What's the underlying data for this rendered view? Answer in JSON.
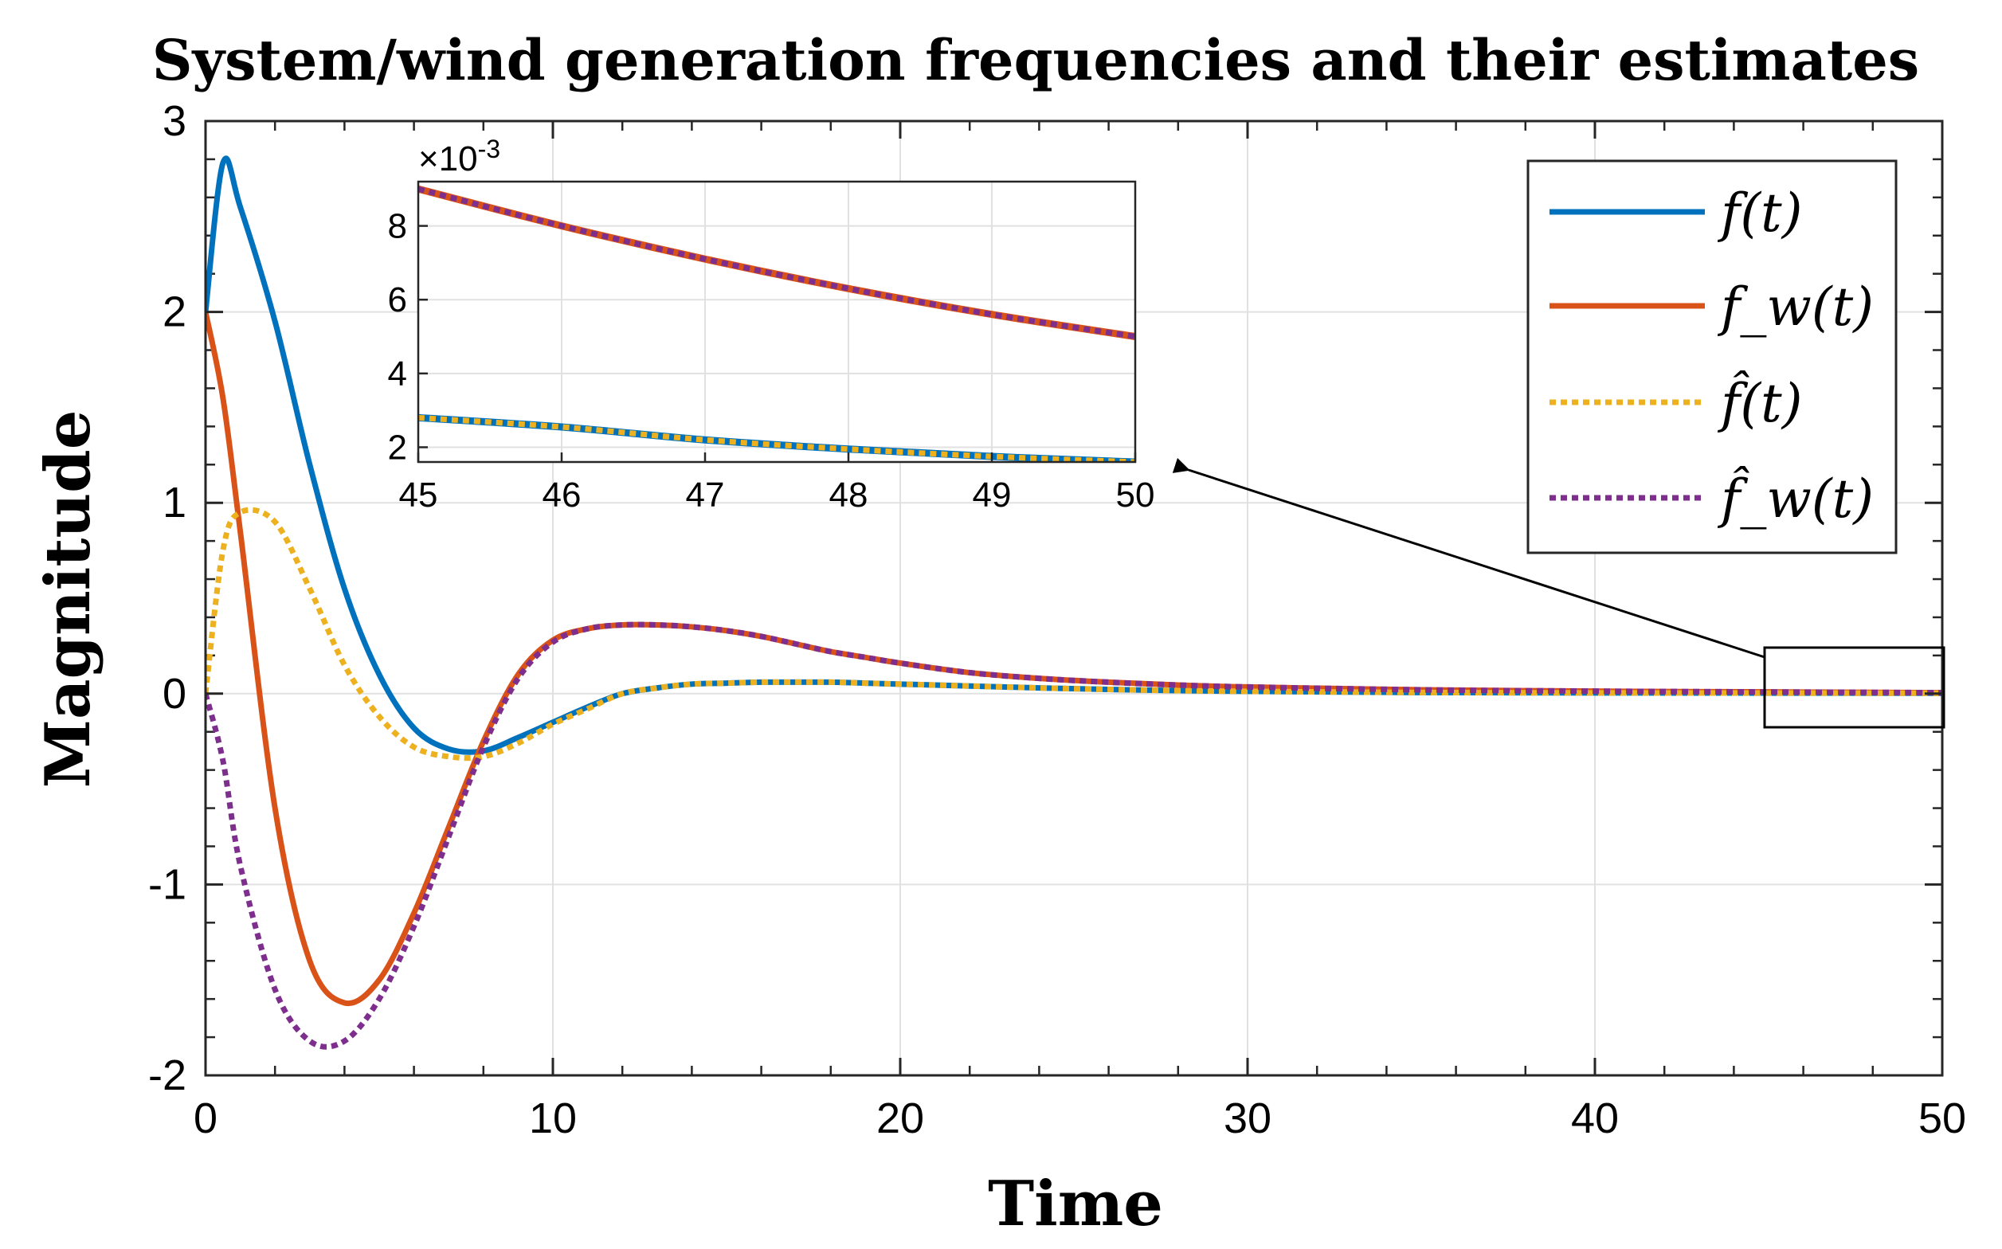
{
  "chart_data": {
    "type": "line",
    "title": "System/wind generation frequencies and their estimates",
    "xlabel": "Time",
    "ylabel": "Magnitude",
    "xlim": [
      0,
      50
    ],
    "ylim": [
      -2,
      3
    ],
    "xticks": [
      "0",
      "10",
      "20",
      "30",
      "40",
      "50"
    ],
    "yticks": [
      "-2",
      "-1",
      "0",
      "1",
      "2",
      "3"
    ],
    "grid": true,
    "legend": {
      "position": "top-right",
      "entries": [
        {
          "label": "f(t)",
          "color": "#0072BD",
          "style": "solid"
        },
        {
          "label": "f_w(t)",
          "color": "#D95319",
          "style": "solid"
        },
        {
          "label": "f̂(t)",
          "color": "#EDB120",
          "style": "dotted"
        },
        {
          "label": "f̂_w(t)",
          "color": "#7E2F8E",
          "style": "dotted"
        }
      ]
    },
    "x": [
      0,
      0.5,
      1,
      2,
      3,
      4,
      5,
      6,
      7,
      8,
      9,
      10,
      11,
      12,
      13,
      14,
      15,
      16,
      17,
      18,
      19,
      20,
      22,
      24,
      26,
      28,
      30,
      35,
      40,
      45,
      50
    ],
    "series": [
      {
        "name": "f(t)",
        "color": "#0072BD",
        "values": [
          2.0,
          2.78,
          2.55,
          1.95,
          1.2,
          0.55,
          0.1,
          -0.18,
          -0.29,
          -0.3,
          -0.23,
          -0.15,
          -0.07,
          0.0,
          0.03,
          0.05,
          0.055,
          0.06,
          0.06,
          0.06,
          0.055,
          0.05,
          0.04,
          0.03,
          0.022,
          0.016,
          0.012,
          0.006,
          0.004,
          0.003,
          0.002
        ]
      },
      {
        "name": "f_w(t)",
        "color": "#D95319",
        "values": [
          2.0,
          1.55,
          0.85,
          -0.6,
          -1.4,
          -1.62,
          -1.5,
          -1.15,
          -0.7,
          -0.25,
          0.1,
          0.28,
          0.34,
          0.36,
          0.36,
          0.35,
          0.33,
          0.3,
          0.26,
          0.22,
          0.19,
          0.16,
          0.11,
          0.08,
          0.06,
          0.045,
          0.035,
          0.02,
          0.013,
          0.009,
          0.005
        ]
      },
      {
        "name": "f̂(t)",
        "color": "#EDB120",
        "values": [
          0.0,
          0.75,
          0.95,
          0.9,
          0.55,
          0.15,
          -0.12,
          -0.28,
          -0.33,
          -0.33,
          -0.26,
          -0.16,
          -0.08,
          0.0,
          0.03,
          0.05,
          0.055,
          0.06,
          0.06,
          0.06,
          0.055,
          0.05,
          0.04,
          0.03,
          0.022,
          0.016,
          0.012,
          0.006,
          0.004,
          0.003,
          0.002
        ]
      },
      {
        "name": "f̂_w(t)",
        "color": "#7E2F8E",
        "values": [
          0.0,
          -0.35,
          -0.9,
          -1.55,
          -1.82,
          -1.82,
          -1.6,
          -1.22,
          -0.75,
          -0.28,
          0.08,
          0.27,
          0.34,
          0.36,
          0.36,
          0.35,
          0.33,
          0.3,
          0.26,
          0.22,
          0.19,
          0.16,
          0.11,
          0.08,
          0.06,
          0.045,
          0.035,
          0.02,
          0.013,
          0.009,
          0.005
        ]
      }
    ],
    "inset": {
      "xlim": [
        45,
        50
      ],
      "ylim": [
        1.6,
        9.2
      ],
      "xticks": [
        "45",
        "46",
        "47",
        "48",
        "49",
        "50"
      ],
      "yticks": [
        "2",
        "4",
        "6",
        "8"
      ],
      "exponent_label": "×10",
      "exponent_power": "-3",
      "x": [
        45,
        46,
        47,
        48,
        49,
        50
      ],
      "series": [
        {
          "name": "f_w(t)",
          "color": "#D95319",
          "values": [
            9.0,
            8.0,
            7.1,
            6.3,
            5.6,
            5.0
          ]
        },
        {
          "name": "f̂_w(t)",
          "color": "#7E2F8E",
          "values": [
            9.0,
            8.0,
            7.1,
            6.3,
            5.6,
            5.0
          ]
        },
        {
          "name": "f(t)",
          "color": "#0072BD",
          "values": [
            2.8,
            2.55,
            2.2,
            1.95,
            1.75,
            1.6
          ]
        },
        {
          "name": "f̂(t)",
          "color": "#EDB120",
          "values": [
            2.8,
            2.55,
            2.2,
            1.95,
            1.75,
            1.6
          ]
        }
      ]
    },
    "annotation": {
      "type": "arrow-zoom",
      "from_region_x": [
        45,
        50
      ],
      "from_region_y": [
        -0.1,
        0.1
      ],
      "to": "inset"
    }
  }
}
